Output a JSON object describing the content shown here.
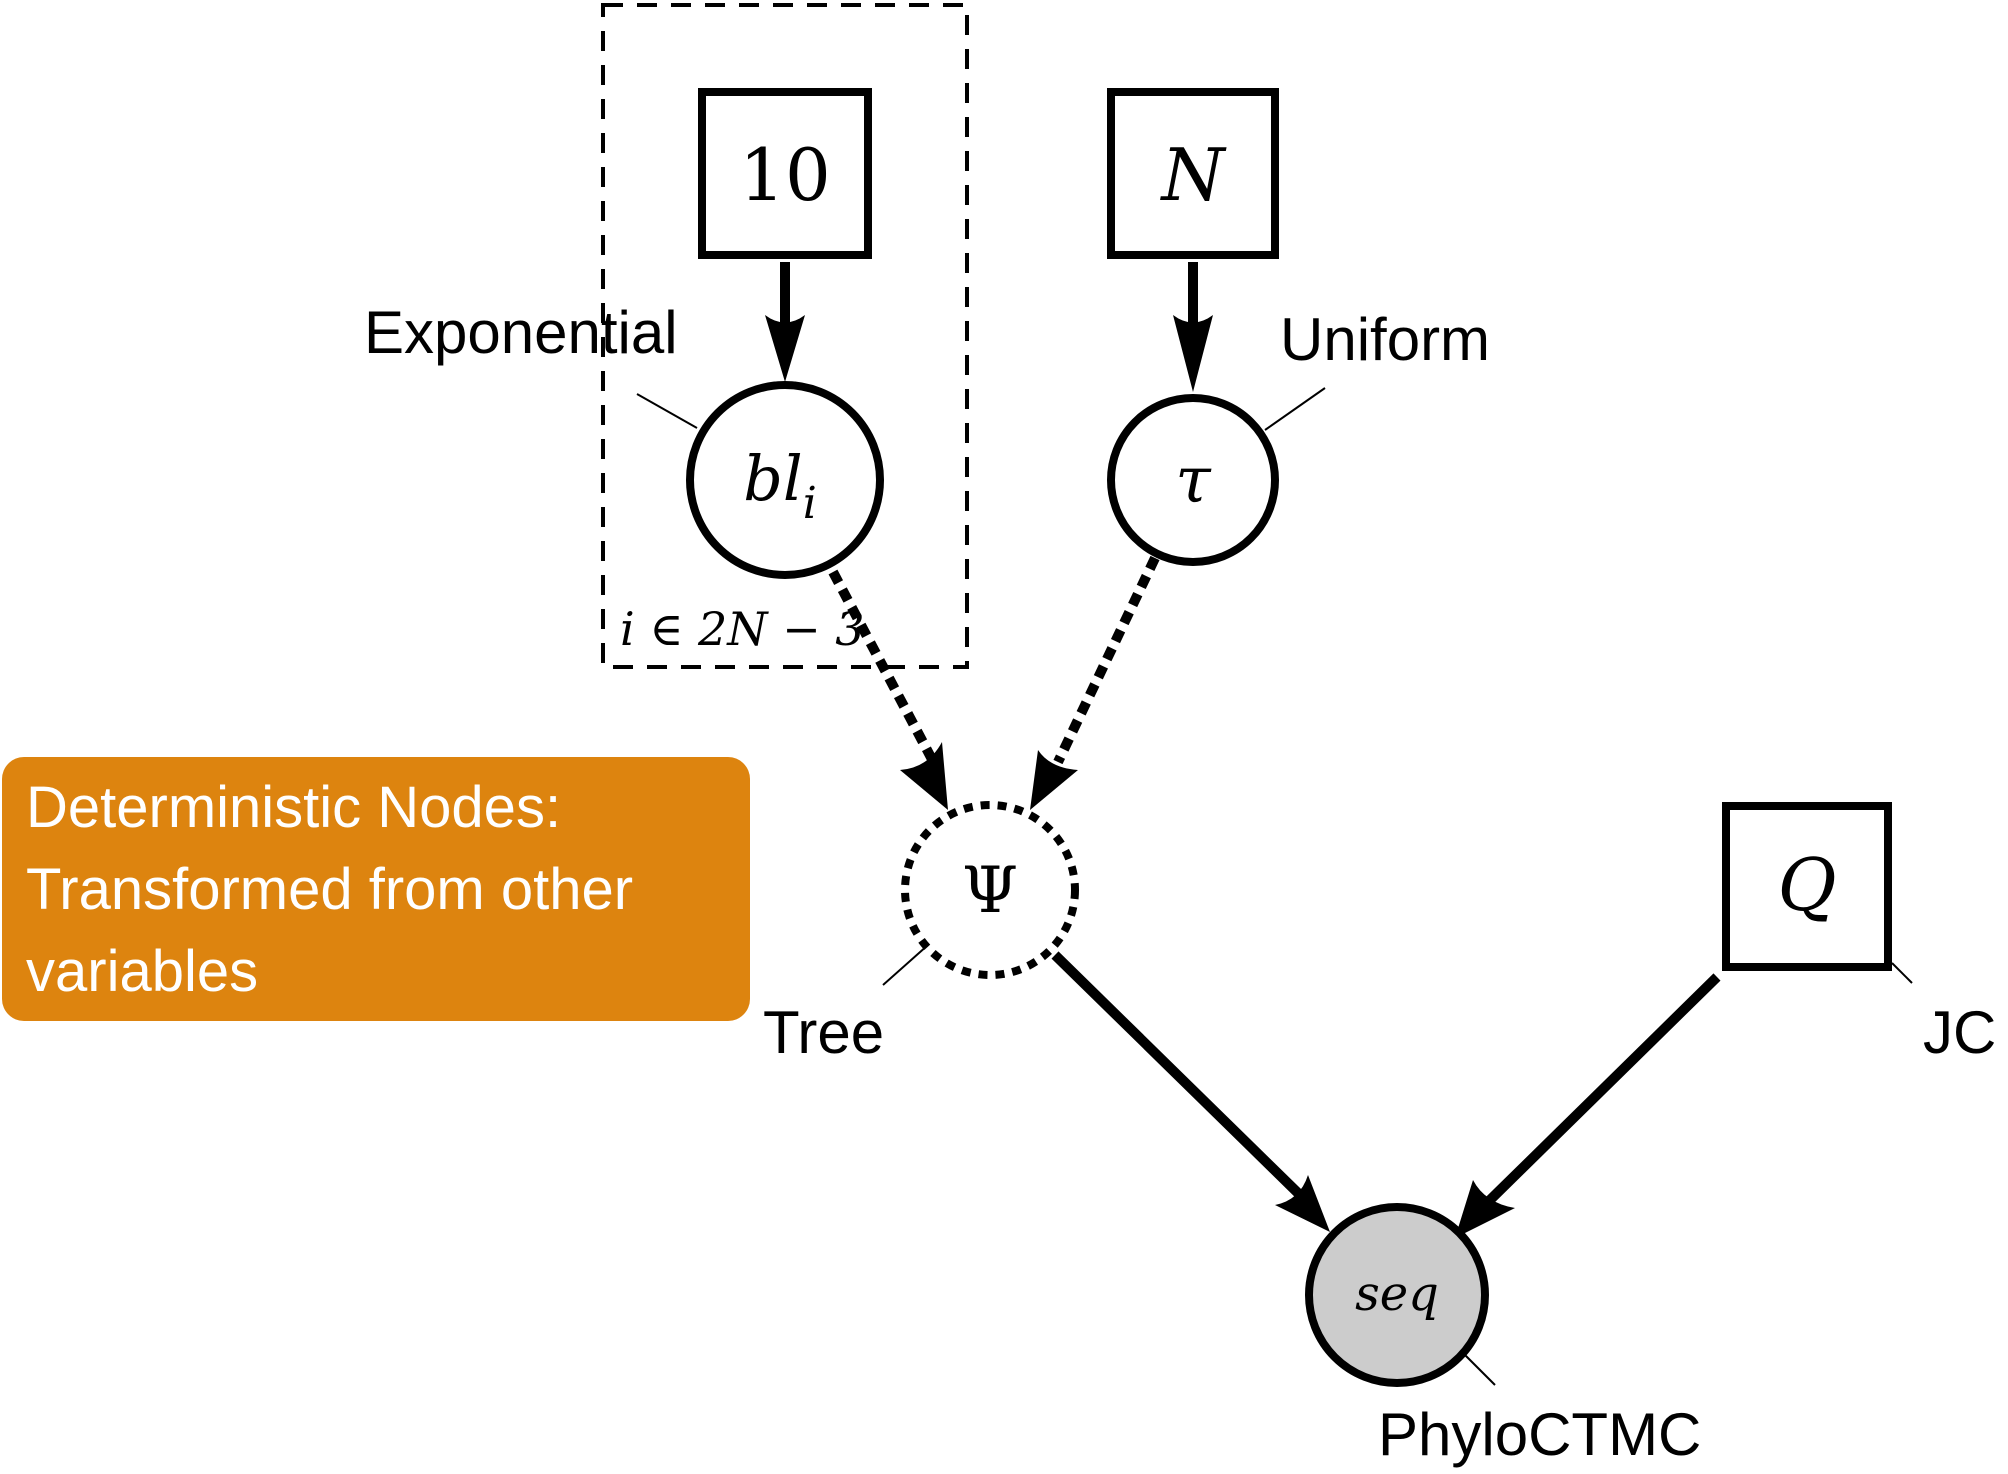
{
  "nodes": {
    "const_10": {
      "label": "10"
    },
    "const_N": {
      "label": "N"
    },
    "bl": {
      "label": "bl",
      "subscript": "i"
    },
    "tau": {
      "label": "τ"
    },
    "psi": {
      "label": "Ψ"
    },
    "Q": {
      "label": "Q"
    },
    "seq": {
      "label": "seq"
    }
  },
  "plate": {
    "label": "i ∈ 2N − 3"
  },
  "annotations": {
    "exponential": "Exponential",
    "uniform": "Uniform",
    "tree": "Tree",
    "jc": "JC",
    "phyloctmc": "PhyloCTMC"
  },
  "callout": {
    "line1": "Deterministic Nodes:",
    "line2": "Transformed from other",
    "line3": "variables"
  },
  "colors": {
    "callout_bg": "#dd840f",
    "observed_fill": "#cccccc",
    "stroke": "#000000"
  }
}
